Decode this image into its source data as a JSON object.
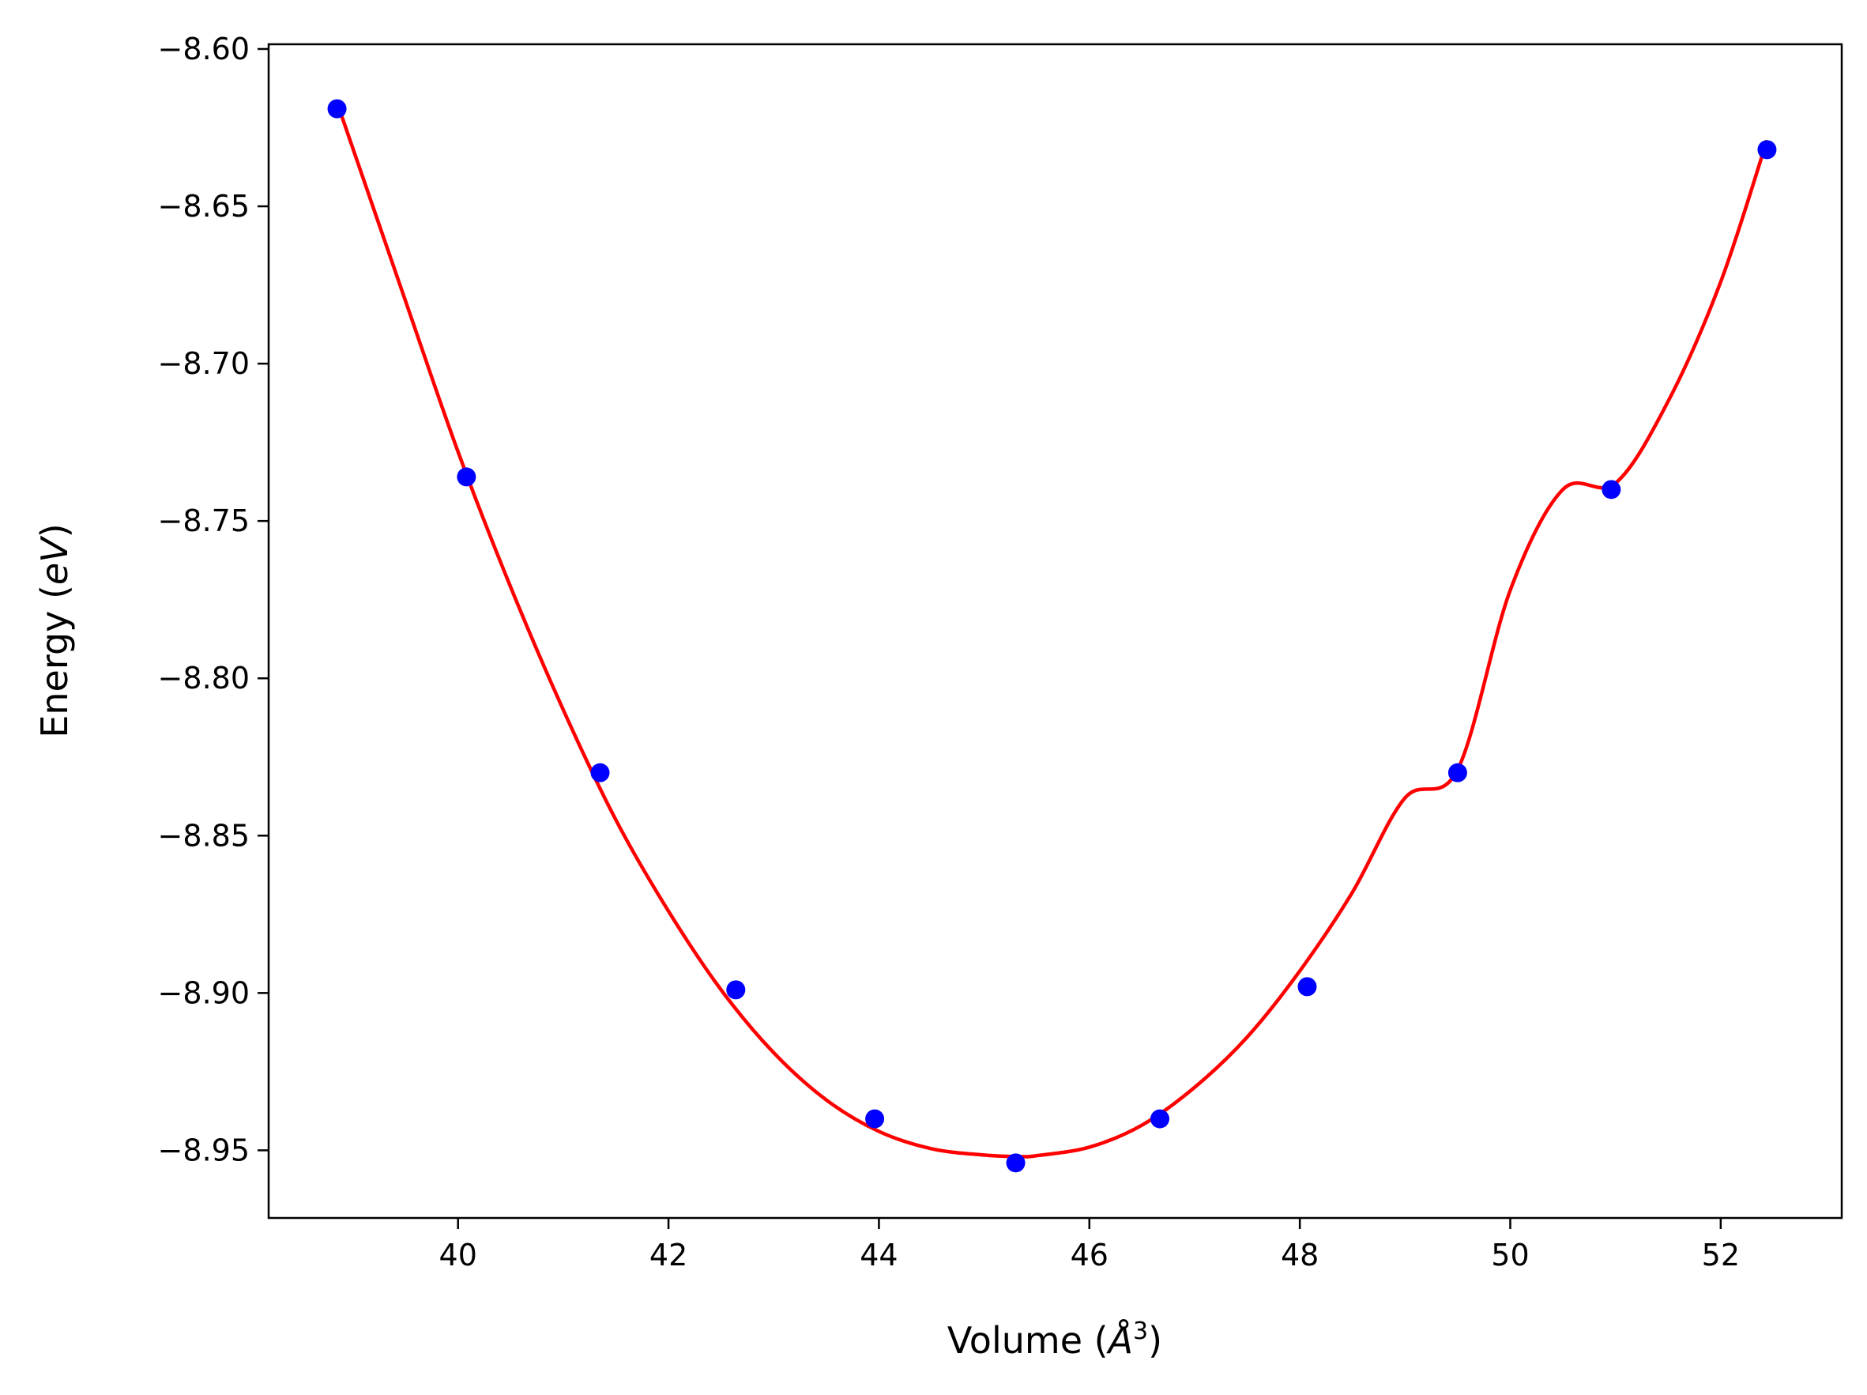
{
  "chart_data": {
    "type": "scatter",
    "xlabel_parts": [
      "Volume (",
      "Å",
      "3",
      ")"
    ],
    "ylabel_parts": [
      "Energy (",
      "eV",
      ")"
    ],
    "xlim": [
      38.2,
      53.15
    ],
    "ylim": [
      -8.9715,
      -8.5985
    ],
    "xticks": [
      40,
      42,
      44,
      46,
      48,
      50,
      52
    ],
    "xtick_labels": [
      "40",
      "42",
      "44",
      "46",
      "48",
      "50",
      "52"
    ],
    "yticks": [
      -8.6,
      -8.65,
      -8.7,
      -8.75,
      -8.8,
      -8.85,
      -8.9,
      -8.95
    ],
    "ytick_labels": [
      "−8.60",
      "−8.65",
      "−8.70",
      "−8.75",
      "−8.80",
      "−8.85",
      "−8.90",
      "−8.95"
    ],
    "grid": false,
    "series": [
      {
        "kind": "points",
        "color": "#0000ff",
        "x": [
          38.85,
          40.08,
          41.35,
          42.64,
          43.96,
          45.3,
          46.67,
          48.07,
          49.5,
          50.96,
          52.44
        ],
        "y": [
          -8.619,
          -8.736,
          -8.83,
          -8.899,
          -8.94,
          -8.954,
          -8.94,
          -8.898,
          -8.83,
          -8.74,
          -8.632
        ]
      },
      {
        "kind": "fit-line",
        "color": "#ff0000",
        "x": [
          38.85,
          39.5,
          40.0,
          40.5,
          41.0,
          41.5,
          42.0,
          42.5,
          43.0,
          43.5,
          44.0,
          44.5,
          45.0,
          45.35,
          45.5,
          46.0,
          46.5,
          47.0,
          47.5,
          48.0,
          48.5,
          49.0,
          49.5,
          50.0,
          50.5,
          51.0,
          51.5,
          52.0,
          52.44
        ],
        "y": [
          -8.617,
          -8.68,
          -8.728,
          -8.771,
          -8.81,
          -8.845,
          -8.874,
          -8.899,
          -8.919,
          -8.934,
          -8.944,
          -8.9495,
          -8.9515,
          -8.952,
          -8.9517,
          -8.949,
          -8.942,
          -8.93,
          -8.914,
          -8.893,
          -8.868,
          -8.838,
          -8.829,
          -8.772,
          -8.74,
          -8.738,
          -8.712,
          -8.674,
          -8.629
        ]
      }
    ]
  }
}
